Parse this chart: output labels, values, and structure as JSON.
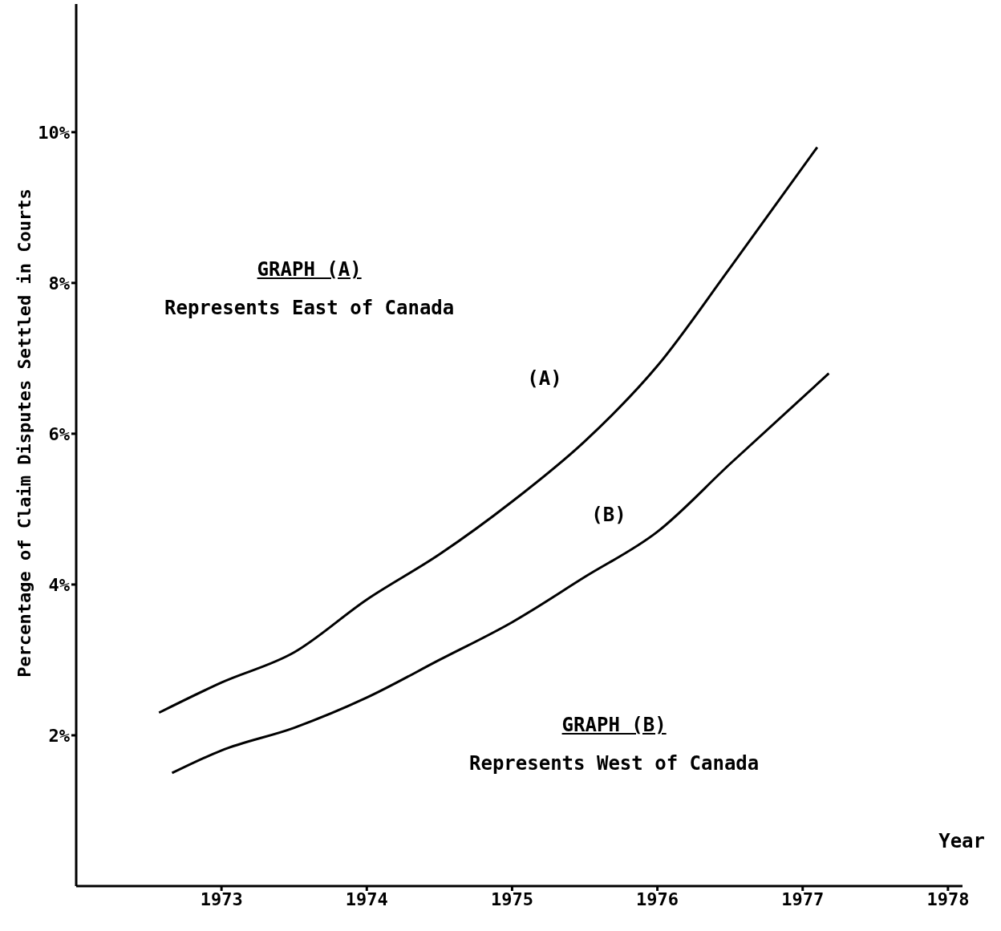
{
  "chart_data": {
    "type": "line",
    "xlabel": "Year",
    "ylabel": "Percentage of Claim Disputes Settled in Courts",
    "annotations": [
      "GRAPH (A)",
      "Represents East of Canada",
      "GRAPH (B)",
      "Represents West of Canada"
    ],
    "xlim": [
      1972,
      1978.1
    ],
    "xticks": [
      1973,
      1974,
      1975,
      1976,
      1977,
      1978
    ],
    "ylim": [
      0,
      11.7
    ],
    "yticks": [
      {
        "value": 2,
        "label": "2%"
      },
      {
        "value": 4,
        "label": "4%"
      },
      {
        "value": 6,
        "label": "6%"
      },
      {
        "value": 8,
        "label": "8%"
      },
      {
        "value": 10,
        "label": "10%"
      }
    ],
    "line_style": "solid",
    "series": [
      {
        "name": "(A)",
        "color": "#000000",
        "x": [
          1972.57,
          1973,
          1973.5,
          1974,
          1974.5,
          1975,
          1975.5,
          1976,
          1976.5,
          1977.1
        ],
        "values": [
          2.3,
          2.7,
          3.1,
          3.8,
          4.4,
          5.1,
          5.9,
          6.9,
          8.2,
          9.8
        ]
      },
      {
        "name": "(B)",
        "color": "#000000",
        "x": [
          1972.66,
          1973,
          1973.5,
          1974,
          1974.5,
          1975,
          1975.5,
          1976,
          1976.5,
          1977.18
        ],
        "values": [
          1.5,
          1.8,
          2.1,
          2.5,
          3.0,
          3.5,
          4.1,
          4.7,
          5.6,
          6.8
        ]
      }
    ]
  }
}
